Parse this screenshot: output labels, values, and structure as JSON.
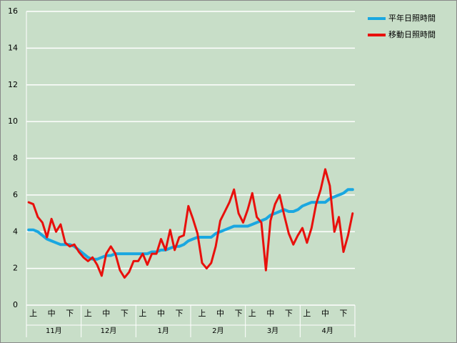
{
  "chart_data": {
    "type": "line",
    "categories": [
      null,
      "上",
      null,
      null,
      null,
      "中",
      null,
      null,
      null,
      "下",
      null,
      null,
      null,
      "上",
      null,
      null,
      null,
      "中",
      null,
      null,
      null,
      "下",
      null,
      null,
      null,
      "上",
      null,
      null,
      null,
      "中",
      null,
      null,
      null,
      "下",
      null,
      null,
      null,
      null,
      "上",
      null,
      null,
      null,
      "中",
      null,
      null,
      null,
      "下",
      null,
      null,
      "上",
      null,
      null,
      null,
      "中",
      null,
      null,
      null,
      "下",
      null,
      null,
      null,
      "上",
      null,
      null,
      null,
      "中",
      null,
      null,
      null,
      "下",
      null,
      null
    ],
    "month_labels": [
      "11月",
      "12月",
      "1月",
      "2月",
      "3月",
      "4月"
    ],
    "series": [
      {
        "name": "平年日照時間",
        "color": "#1aa7e0",
        "values": [
          4.1,
          4.1,
          4.0,
          3.8,
          3.6,
          3.5,
          3.4,
          3.3,
          3.3,
          3.3,
          3.2,
          3.0,
          2.8,
          2.6,
          2.5,
          2.5,
          2.6,
          2.7,
          2.7,
          2.8,
          2.8,
          2.8,
          2.8,
          2.8,
          2.8,
          2.8,
          2.8,
          2.9,
          2.9,
          3.0,
          3.0,
          3.1,
          3.2,
          3.2,
          3.3,
          3.5,
          3.6,
          3.7,
          3.7,
          3.7,
          3.7,
          3.9,
          4.0,
          4.1,
          4.2,
          4.3,
          4.3,
          4.3,
          4.3,
          4.4,
          4.5,
          4.6,
          4.7,
          4.9,
          5.0,
          5.1,
          5.2,
          5.1,
          5.1,
          5.2,
          5.4,
          5.5,
          5.6,
          5.6,
          5.6,
          5.6,
          5.8,
          5.9,
          6.0,
          6.1,
          6.3,
          6.3
        ]
      },
      {
        "name": "移動日照時間",
        "color": "#e8100c",
        "values": [
          5.6,
          5.5,
          4.8,
          4.5,
          3.7,
          4.7,
          4.0,
          4.4,
          3.4,
          3.2,
          3.3,
          2.9,
          2.6,
          2.4,
          2.6,
          2.2,
          1.6,
          2.8,
          3.2,
          2.8,
          1.9,
          1.5,
          1.8,
          2.4,
          2.4,
          2.8,
          2.2,
          2.8,
          2.8,
          3.6,
          3.0,
          4.1,
          3.0,
          3.7,
          3.8,
          5.4,
          4.7,
          3.9,
          2.3,
          2.0,
          2.3,
          3.2,
          4.6,
          5.1,
          5.6,
          6.3,
          5.0,
          4.5,
          5.2,
          6.1,
          4.8,
          4.5,
          1.9,
          4.6,
          5.5,
          6.0,
          4.9,
          3.9,
          3.3,
          3.8,
          4.2,
          3.4,
          4.2,
          5.5,
          6.3,
          7.4,
          6.5,
          4.0,
          4.8,
          2.9,
          3.8,
          5.0
        ]
      }
    ],
    "ylim": [
      0,
      16
    ],
    "yticks": [
      0,
      2,
      4,
      6,
      8,
      10,
      12,
      14,
      16
    ],
    "grid": true,
    "legend": "top-right"
  }
}
